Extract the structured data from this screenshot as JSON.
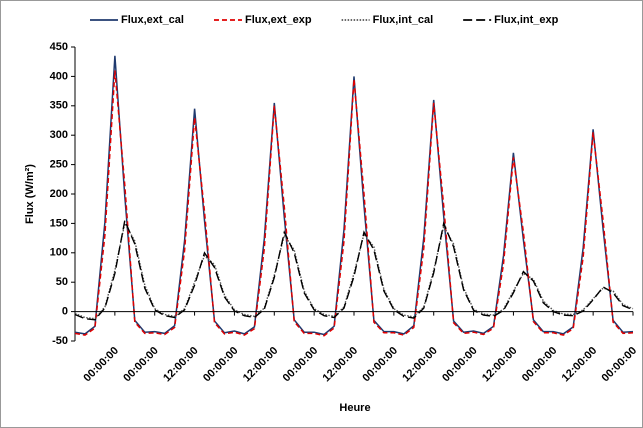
{
  "chart_data": {
    "type": "line",
    "x_label": "Heure",
    "y_label": "Flux (W/m²)",
    "xlim": [
      0,
      168
    ],
    "ylim": [
      -50,
      450
    ],
    "yticks": [
      -50,
      0,
      50,
      100,
      150,
      200,
      250,
      300,
      350,
      400,
      450
    ],
    "xticks": [
      {
        "value": 12,
        "label": "00:00:00"
      },
      {
        "value": 24,
        "label": "00:00:00"
      },
      {
        "value": 36,
        "label": "12:00:00"
      },
      {
        "value": 48,
        "label": "00:00:00"
      },
      {
        "value": 60,
        "label": "12:00:00"
      },
      {
        "value": 72,
        "label": "00:00:00"
      },
      {
        "value": 84,
        "label": "12:00:00"
      },
      {
        "value": 96,
        "label": "00:00:00"
      },
      {
        "value": 108,
        "label": "12:00:00"
      },
      {
        "value": 120,
        "label": "00:00:00"
      },
      {
        "value": 132,
        "label": "12:00:00"
      },
      {
        "value": 144,
        "label": "00:00:00"
      },
      {
        "value": 156,
        "label": "12:00:00"
      },
      {
        "value": 168,
        "label": "00:00:00"
      }
    ],
    "grid": false,
    "legend": "top",
    "x": [
      0,
      3,
      6,
      9,
      12,
      15,
      18,
      21,
      24,
      27,
      30,
      33,
      36,
      39,
      42,
      45,
      48,
      51,
      54,
      57,
      60,
      63,
      66,
      69,
      72,
      75,
      78,
      81,
      84,
      87,
      90,
      93,
      96,
      99,
      102,
      105,
      108,
      111,
      114,
      117,
      120,
      123,
      126,
      129,
      132,
      135,
      138,
      141,
      144,
      147,
      150,
      153,
      156,
      159,
      162,
      165,
      168
    ],
    "series": [
      {
        "name": "Flux,ext_cal",
        "color": "#1f3a6e",
        "dash": "solid",
        "values": [
          -35,
          -38,
          -25,
          152,
          435,
          196,
          -15,
          -35,
          -34,
          -37,
          -24,
          121,
          345,
          155,
          -16,
          -36,
          -33,
          -38,
          -26,
          124,
          355,
          160,
          -14,
          -35,
          -35,
          -39,
          -25,
          140,
          400,
          180,
          -15,
          -34,
          -34,
          -38,
          -24,
          126,
          360,
          162,
          -16,
          -35,
          -33,
          -37,
          -25,
          95,
          270,
          122,
          -14,
          -34,
          -34,
          -38,
          -26,
          109,
          310,
          140,
          -15,
          -35,
          -34
        ]
      },
      {
        "name": "Flux,ext_exp",
        "color": "#e00000",
        "dash": "dashed",
        "values": [
          -37,
          -40,
          -28,
          130,
          410,
          215,
          -18,
          -37,
          -36,
          -39,
          -27,
          104,
          330,
          170,
          -19,
          -38,
          -35,
          -40,
          -29,
          107,
          350,
          178,
          -17,
          -37,
          -37,
          -41,
          -28,
          120,
          395,
          200,
          -18,
          -36,
          -36,
          -40,
          -27,
          108,
          355,
          180,
          -19,
          -37,
          -35,
          -39,
          -28,
          81,
          262,
          135,
          -17,
          -36,
          -36,
          -40,
          -29,
          93,
          305,
          155,
          -18,
          -37,
          -36
        ]
      },
      {
        "name": "Flux,int_cal",
        "color": "#555555",
        "dash": "dotted",
        "values": [
          -3,
          -10,
          -12,
          8,
          70,
          150,
          120,
          45,
          5,
          -5,
          -8,
          5,
          50,
          95,
          80,
          28,
          3,
          -5,
          -8,
          6,
          62,
          130,
          105,
          35,
          5,
          -5,
          -8,
          8,
          65,
          132,
          110,
          38,
          5,
          -6,
          -9,
          8,
          70,
          145,
          115,
          40,
          4,
          -4,
          -6,
          4,
          35,
          65,
          55,
          18,
          2,
          -4,
          -5,
          3,
          22,
          40,
          35,
          12,
          5
        ]
      },
      {
        "name": "Flux,int_exp",
        "color": "#000000",
        "dash": "longdash",
        "values": [
          -5,
          -12,
          -14,
          6,
          65,
          155,
          115,
          40,
          3,
          -7,
          -10,
          3,
          45,
          100,
          75,
          25,
          1,
          -7,
          -10,
          4,
          58,
          135,
          100,
          32,
          3,
          -7,
          -10,
          6,
          60,
          135,
          105,
          35,
          3,
          -8,
          -11,
          6,
          66,
          150,
          110,
          37,
          2,
          -6,
          -8,
          2,
          32,
          68,
          52,
          15,
          0,
          -6,
          -7,
          1,
          20,
          42,
          32,
          10,
          3
        ]
      }
    ]
  }
}
